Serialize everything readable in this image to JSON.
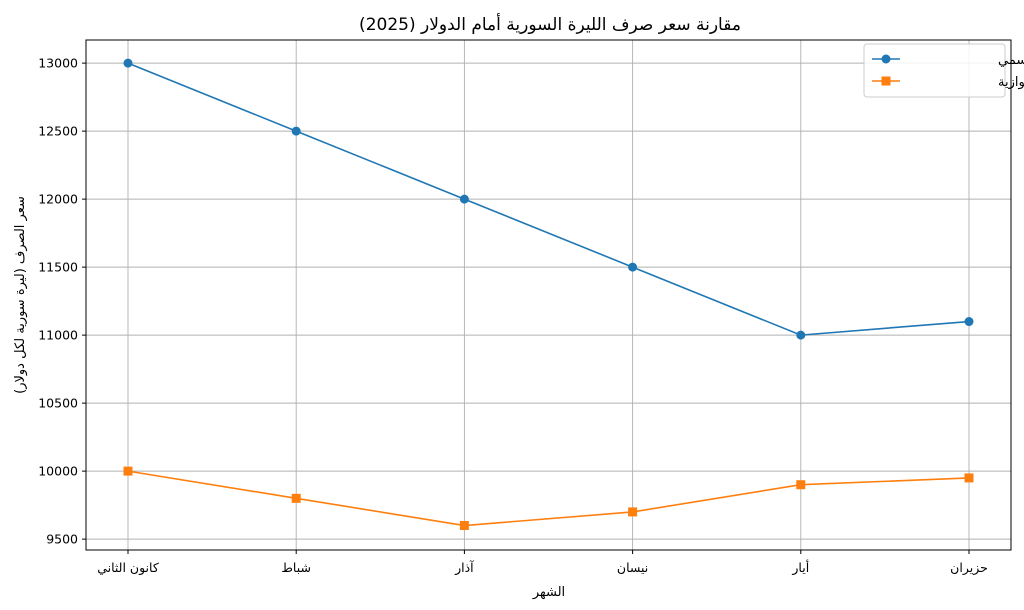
{
  "chart_data": {
    "type": "line",
    "title": "مقارنة سعر صرف الليرة السورية أمام الدولار (2025)",
    "xlabel": "الشهر",
    "ylabel": "سعر الصرف (ليرة سورية لكل دولار)",
    "categories": [
      "كانون الثاني",
      "شباط",
      "آذار",
      "نيسان",
      "أيار",
      "حزيران"
    ],
    "series": [
      {
        "name": "السعر الرسمي",
        "values": [
          13000,
          12500,
          12000,
          11500,
          11000,
          11100
        ],
        "color": "#1f77b4",
        "marker": "circle"
      },
      {
        "name": "السوق الموازية",
        "values": [
          10000,
          9800,
          9600,
          9700,
          9900,
          9950
        ],
        "color": "#ff7f0e",
        "marker": "square"
      }
    ],
    "ylim": [
      9420,
      13170
    ],
    "yticks": [
      9500,
      10000,
      10500,
      11000,
      11500,
      12000,
      12500,
      13000
    ],
    "grid": true,
    "legend": "top-right"
  }
}
